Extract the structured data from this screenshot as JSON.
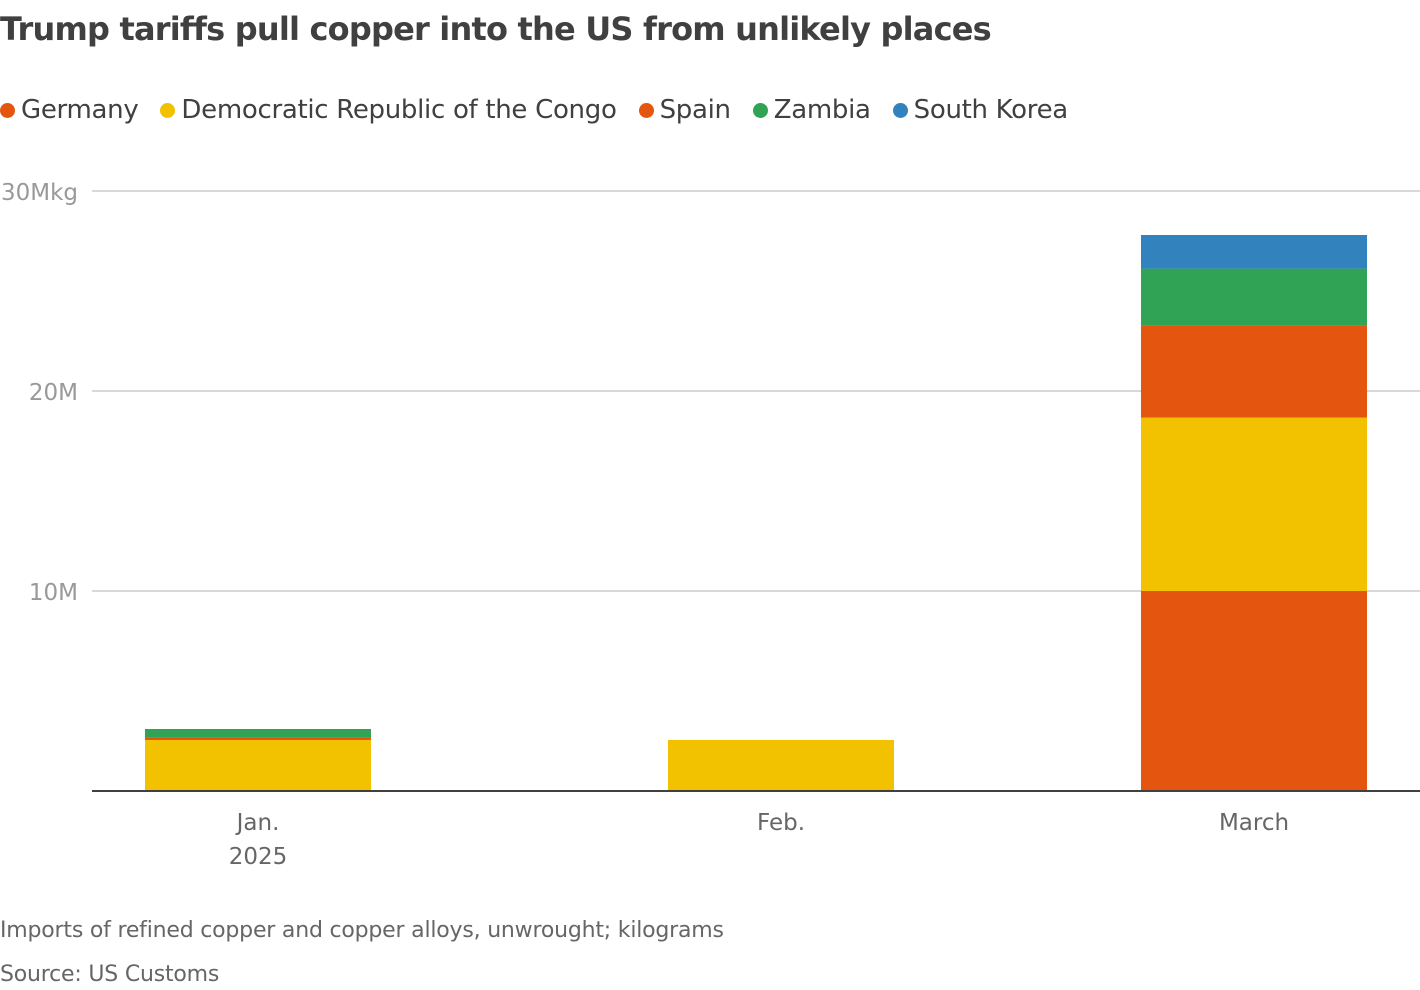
{
  "chart_data": {
    "type": "bar",
    "stacked": true,
    "title": "Trump tariffs pull copper into the US from unlikely places",
    "categories": [
      "Jan. 2025",
      "Feb.",
      "March"
    ],
    "category_labels": [
      [
        "Jan.",
        "2025"
      ],
      [
        "Feb."
      ],
      [
        "March"
      ]
    ],
    "series": [
      {
        "name": "Germany",
        "color": "#e4560f",
        "values": [
          0,
          0,
          10.0
        ]
      },
      {
        "name": "Democratic Republic of the Congo",
        "color": "#f2c100",
        "values": [
          2.55,
          2.55,
          8.67
        ]
      },
      {
        "name": "Spain",
        "color": "#e4560f",
        "values": [
          0.12,
          0,
          4.6
        ]
      },
      {
        "name": "Zambia",
        "color": "#31a354",
        "values": [
          0.43,
          0,
          2.85
        ]
      },
      {
        "name": "South Korea",
        "color": "#3182bd",
        "values": [
          0,
          0,
          1.68
        ]
      }
    ],
    "value_unit": "million kg",
    "ylim": [
      0,
      30
    ],
    "yticks": [
      10,
      20,
      30
    ],
    "ytick_labels": [
      "10M",
      "20M",
      "30Mkg"
    ],
    "grid": true,
    "legend_position": "top-left",
    "note": "Imports of refined copper and copper alloys, unwrought; kilograms",
    "source": "Source: US Customs"
  }
}
